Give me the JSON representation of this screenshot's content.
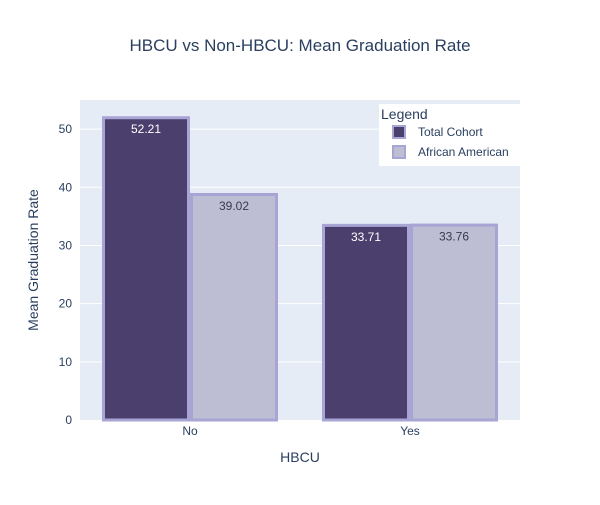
{
  "chart_data": {
    "type": "bar",
    "title": "HBCU vs Non-HBCU: Mean Graduation Rate",
    "xlabel": "HBCU",
    "ylabel": "Mean Graduation Rate",
    "categories": [
      "No",
      "Yes"
    ],
    "ylim": [
      0,
      55
    ],
    "yticks": [
      0,
      10,
      20,
      30,
      40,
      50
    ],
    "grid": true,
    "legend": {
      "title": "Legend",
      "placement": "top-right"
    },
    "series": [
      {
        "name": "Total Cohort",
        "values": [
          52.21,
          33.71
        ],
        "labels": [
          "52.21",
          "33.71"
        ],
        "color": "#4b3f6e",
        "label_color": "#ffffff"
      },
      {
        "name": "African American",
        "values": [
          39.02,
          33.76
        ],
        "labels": [
          "39.02",
          "33.76"
        ],
        "color": "#bdbdd4",
        "label_color": "#3a3a4a"
      }
    ],
    "colors": {
      "plot_bg": "#e5ecf6",
      "grid": "#ffffff",
      "bar_outline": "#a8a4d4",
      "text": "#2a3f5f"
    }
  }
}
